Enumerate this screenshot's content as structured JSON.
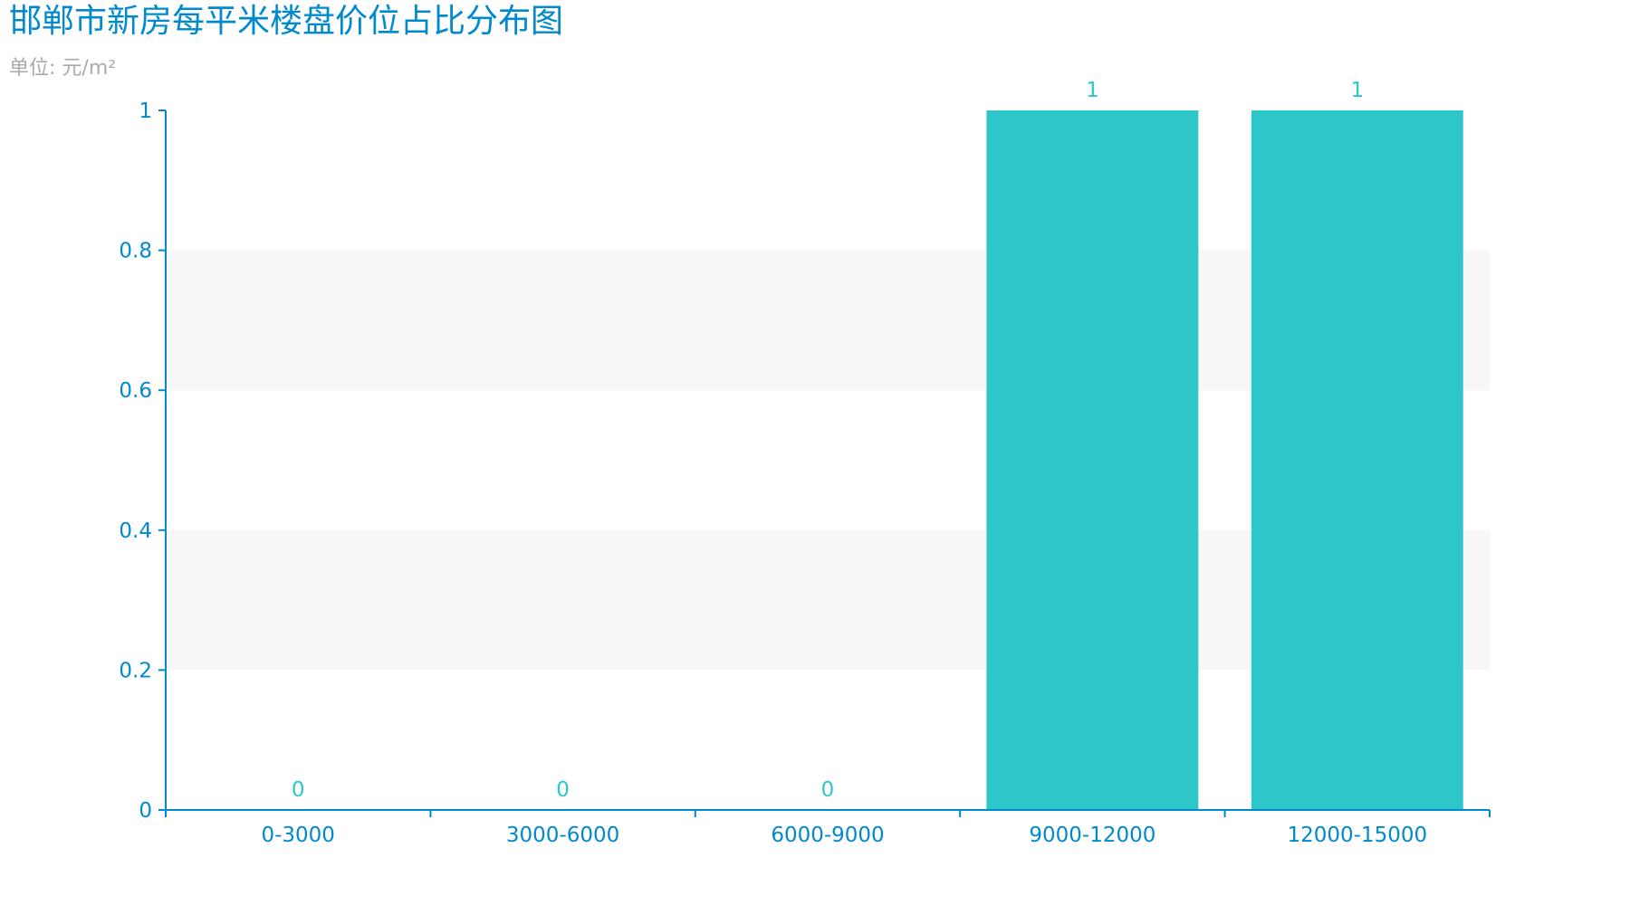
{
  "colors": {
    "title": "#008acd",
    "subtitle": "#aaaaaa",
    "axis": "#008acd",
    "bar": "#2ec7c9",
    "label": "#2ec7c9",
    "band": "#f7f7f7"
  },
  "chart_data": {
    "type": "bar",
    "title": "邯郸市新房每平米楼盘价位占比分布图",
    "subtitle": "单位: 元/m²",
    "categories": [
      "0-3000",
      "3000-6000",
      "6000-9000",
      "9000-12000",
      "12000-15000"
    ],
    "values": [
      0,
      0,
      0,
      1,
      1
    ],
    "value_labels": [
      "0",
      "0",
      "0",
      "1",
      "1"
    ],
    "ylim": [
      0,
      1
    ],
    "yticks": [
      0,
      0.2,
      0.4,
      0.6,
      0.8,
      1
    ],
    "ytick_labels": [
      "0",
      "0.2",
      "0.4",
      "0.6",
      "0.8",
      "1"
    ],
    "xlabel": "",
    "ylabel": "",
    "grid": "alternating horizontal bands",
    "legend": "none"
  }
}
